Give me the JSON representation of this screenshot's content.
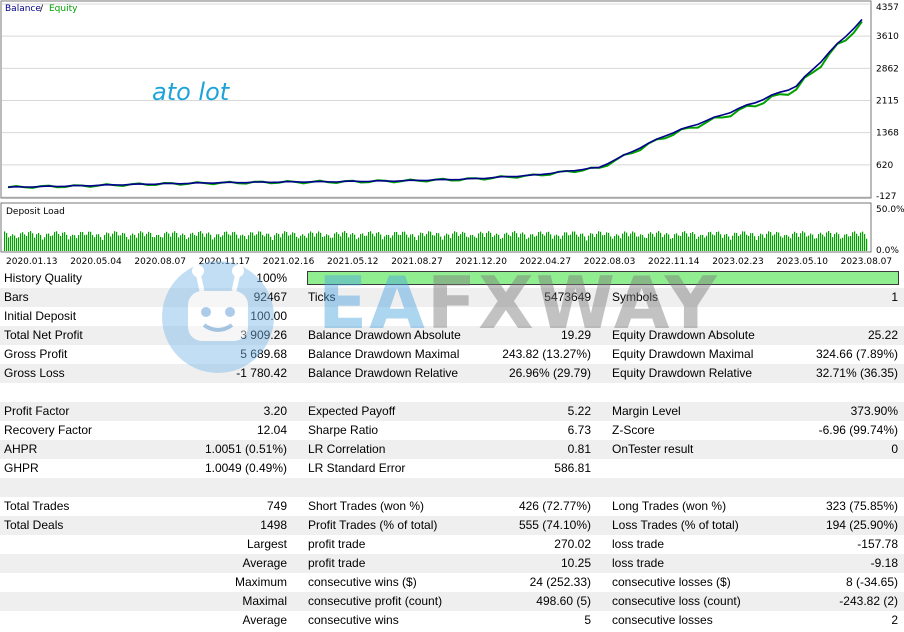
{
  "chart": {
    "legend_balance": "Balance",
    "legend_sep": " / ",
    "legend_equity": "Equity",
    "note": "ato lot",
    "y_ticks": [
      "4357",
      "3610",
      "2862",
      "2115",
      "1368",
      "620",
      "-127"
    ],
    "deposit_load_label": "Deposit Load",
    "load_ticks": [
      "50.0%",
      "0.0%"
    ],
    "x_dates": [
      "2020.01.13",
      "2020.05.04",
      "2020.08.07",
      "2020.11.17",
      "2021.02.16",
      "2021.05.12",
      "2021.08.27",
      "2021.12.20",
      "2022.04.27",
      "2022.08.03",
      "2022.11.14",
      "2023.02.23",
      "2023.05.10",
      "2023.08.07"
    ],
    "colors": {
      "balance": "#00008b",
      "equity": "#00a000",
      "load": "#00a000",
      "grid": "#d8d8d8"
    }
  },
  "chart_data": {
    "type": "line",
    "x": [
      "2020.01.13",
      "2020.05.04",
      "2020.08.07",
      "2020.11.17",
      "2021.02.16",
      "2021.05.12",
      "2021.08.27",
      "2021.12.20",
      "2022.04.27",
      "2022.08.03",
      "2022.11.14",
      "2023.02.23",
      "2023.05.10",
      "2023.08.07"
    ],
    "series": [
      {
        "name": "Balance",
        "values": [
          100,
          130,
          170,
          200,
          220,
          230,
          250,
          290,
          380,
          560,
          1300,
          1850,
          2450,
          4000
        ]
      },
      {
        "name": "Equity",
        "values": [
          100,
          125,
          165,
          195,
          215,
          225,
          245,
          285,
          370,
          545,
          1270,
          1800,
          2380,
          3950
        ]
      }
    ],
    "ylim": [
      -127,
      4357
    ],
    "grid": true
  },
  "watermark": {
    "brand_ea": "EA",
    "brand_rest": "FXWAY"
  },
  "report": {
    "history_quality_label": "History Quality",
    "history_quality_value": "100%",
    "history_quality_fill": 1.0,
    "rows": [
      {
        "c": [
          [
            "Bars",
            "92467"
          ],
          [
            "Ticks",
            "5473649"
          ],
          [
            "Symbols",
            "1"
          ]
        ]
      },
      {
        "c": [
          [
            "Initial Deposit",
            "100.00"
          ],
          [
            "",
            ""
          ],
          [
            "",
            ""
          ]
        ]
      },
      {
        "c": [
          [
            "Total Net Profit",
            "3 909.26"
          ],
          [
            "Balance Drawdown Absolute",
            "19.29"
          ],
          [
            "Equity Drawdown Absolute",
            "25.22"
          ]
        ]
      },
      {
        "c": [
          [
            "Gross Profit",
            "5 689.68"
          ],
          [
            "Balance Drawdown Maximal",
            "243.82 (13.27%)"
          ],
          [
            "Equity Drawdown Maximal",
            "324.66 (7.89%)"
          ]
        ]
      },
      {
        "c": [
          [
            "Gross Loss",
            "-1 780.42"
          ],
          [
            "Balance Drawdown Relative",
            "26.96% (29.79)"
          ],
          [
            "Equity Drawdown Relative",
            "32.71% (36.35)"
          ]
        ]
      },
      {
        "c": [
          [
            "",
            ""
          ],
          [
            "",
            ""
          ],
          [
            "",
            ""
          ]
        ]
      },
      {
        "c": [
          [
            "Profit Factor",
            "3.20"
          ],
          [
            "Expected Payoff",
            "5.22"
          ],
          [
            "Margin Level",
            "373.90%"
          ]
        ]
      },
      {
        "c": [
          [
            "Recovery Factor",
            "12.04"
          ],
          [
            "Sharpe Ratio",
            "6.73"
          ],
          [
            "Z-Score",
            "-6.96 (99.74%)"
          ]
        ]
      },
      {
        "c": [
          [
            "AHPR",
            "1.0051 (0.51%)"
          ],
          [
            "LR Correlation",
            "0.81"
          ],
          [
            "OnTester result",
            "0"
          ]
        ]
      },
      {
        "c": [
          [
            "GHPR",
            "1.0049 (0.49%)"
          ],
          [
            "LR Standard Error",
            "586.81"
          ],
          [
            "",
            ""
          ]
        ]
      },
      {
        "c": [
          [
            "",
            ""
          ],
          [
            "",
            ""
          ],
          [
            "",
            ""
          ]
        ]
      },
      {
        "c": [
          [
            "Total Trades",
            "749"
          ],
          [
            "Short Trades (won %)",
            "426 (72.77%)"
          ],
          [
            "Long Trades (won %)",
            "323 (75.85%)"
          ]
        ]
      },
      {
        "c": [
          [
            "Total Deals",
            "1498"
          ],
          [
            "Profit Trades (% of total)",
            "555 (74.10%)"
          ],
          [
            "Loss Trades (% of total)",
            "194 (25.90%)"
          ]
        ]
      },
      {
        "r": "Largest",
        "c": [
          [
            "",
            ""
          ],
          [
            "profit trade",
            "270.02"
          ],
          [
            "loss trade",
            "-157.78"
          ]
        ]
      },
      {
        "r": "Average",
        "c": [
          [
            "",
            ""
          ],
          [
            "profit trade",
            "10.25"
          ],
          [
            "loss trade",
            "-9.18"
          ]
        ]
      },
      {
        "r": "Maximum",
        "c": [
          [
            "",
            ""
          ],
          [
            "consecutive wins ($)",
            "24 (252.33)"
          ],
          [
            "consecutive losses ($)",
            "8 (-34.65)"
          ]
        ]
      },
      {
        "r": "Maximal",
        "c": [
          [
            "",
            ""
          ],
          [
            "consecutive profit (count)",
            "498.60 (5)"
          ],
          [
            "consecutive loss (count)",
            "-243.82 (2)"
          ]
        ]
      },
      {
        "r": "Average",
        "c": [
          [
            "",
            ""
          ],
          [
            "consecutive wins",
            "5"
          ],
          [
            "consecutive losses",
            "2"
          ]
        ]
      }
    ]
  }
}
